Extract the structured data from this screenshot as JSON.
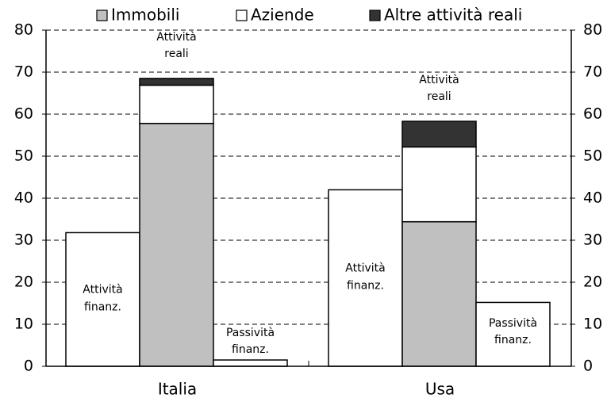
{
  "chart_data": {
    "type": "bar",
    "stacked": true,
    "categories": [
      "Italia",
      "Usa"
    ],
    "series": [
      {
        "name": "Immobili",
        "color": "#c0c0c0",
        "values": [
          57.8,
          34.4
        ]
      },
      {
        "name": "Aziende",
        "color": "#ffffff",
        "values": [
          9.1,
          17.8
        ]
      },
      {
        "name": "Altre attività reali",
        "color": "#333333",
        "values": [
          1.6,
          6.1
        ]
      }
    ],
    "stack_label": [
      "Attività",
      "reali"
    ],
    "financial_assets": {
      "label": [
        "Attività",
        "finanz."
      ],
      "color": "#ffffff",
      "values": [
        31.8,
        42
      ]
    },
    "financial_liabilities": {
      "label": [
        "Passività",
        "finanz."
      ],
      "color": "#ffffff",
      "values": [
        1.5,
        15.2
      ]
    },
    "ylim": [
      0,
      80
    ],
    "yticks": [
      0,
      10,
      20,
      30,
      40,
      50,
      60,
      70,
      80
    ],
    "y2lim": [
      0,
      80
    ],
    "y2ticks": [
      0,
      10,
      20,
      30,
      40,
      50,
      60,
      70,
      80
    ],
    "grid": true,
    "legend": "top"
  }
}
